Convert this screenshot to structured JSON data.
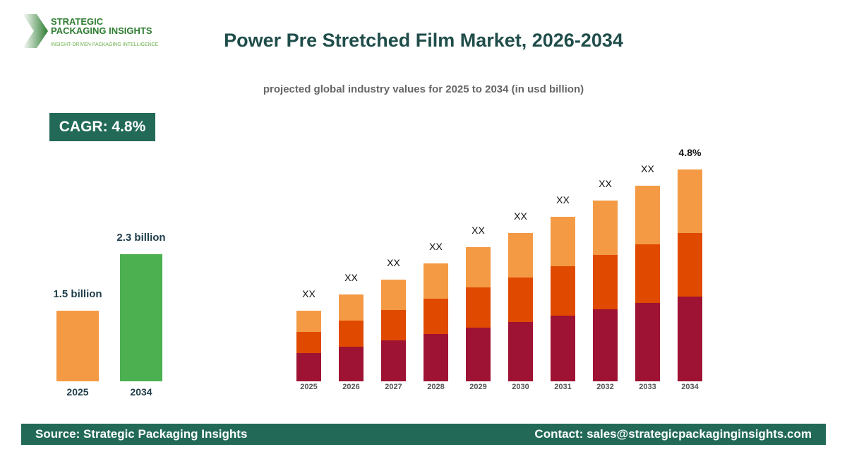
{
  "logo": {
    "line1": "STRATEGIC",
    "line2": "PACKAGING INSIGHTS",
    "tagline": "INSIGHT-DRIVEN PACKAGING INTELLIGENCE"
  },
  "header": {
    "title": "Power Pre Stretched Film Market, 2026-2034",
    "subtitle": "projected global industry values for 2025 to 2034 (in usd billion)"
  },
  "cagr_badge": "CAGR: 4.8%",
  "footer": {
    "source": "Source: Strategic Packaging Insights",
    "contact": "Contact: sales@strategicpackaginginsights.com"
  },
  "colors": {
    "brand": "#226a57",
    "light_orange": "#f49a45",
    "orange": "#e04a00",
    "crimson": "#9e1233",
    "green": "#4cb050"
  },
  "chart_data": [
    {
      "type": "bar",
      "categories": [
        "2025",
        "2034"
      ],
      "values": [
        1.5,
        2.3
      ],
      "data_labels": [
        "1.5 billion",
        "2.3 billion"
      ],
      "colors": [
        "#f49a45",
        "#4cb050"
      ],
      "ylim": [
        0.5,
        2.3
      ]
    },
    {
      "type": "bar",
      "stacked": true,
      "categories": [
        "2025",
        "2026",
        "2027",
        "2028",
        "2029",
        "2030",
        "2031",
        "2032",
        "2033",
        "2034"
      ],
      "series": [
        {
          "color": "#9e1233",
          "values": [
            40,
            49,
            58,
            67,
            76,
            84,
            93,
            102,
            111,
            120
          ]
        },
        {
          "color": "#e04a00",
          "values": [
            30,
            37,
            43,
            50,
            57,
            63,
            70,
            77,
            83,
            90
          ]
        },
        {
          "color": "#f49a45",
          "values": [
            30,
            37,
            43,
            50,
            57,
            63,
            70,
            77,
            83,
            90
          ]
        }
      ],
      "data_labels": [
        "XX",
        "XX",
        "XX",
        "XX",
        "XX",
        "XX",
        "XX",
        "XX",
        "XX",
        "4.8%"
      ],
      "ylim": [
        0,
        300
      ]
    }
  ]
}
